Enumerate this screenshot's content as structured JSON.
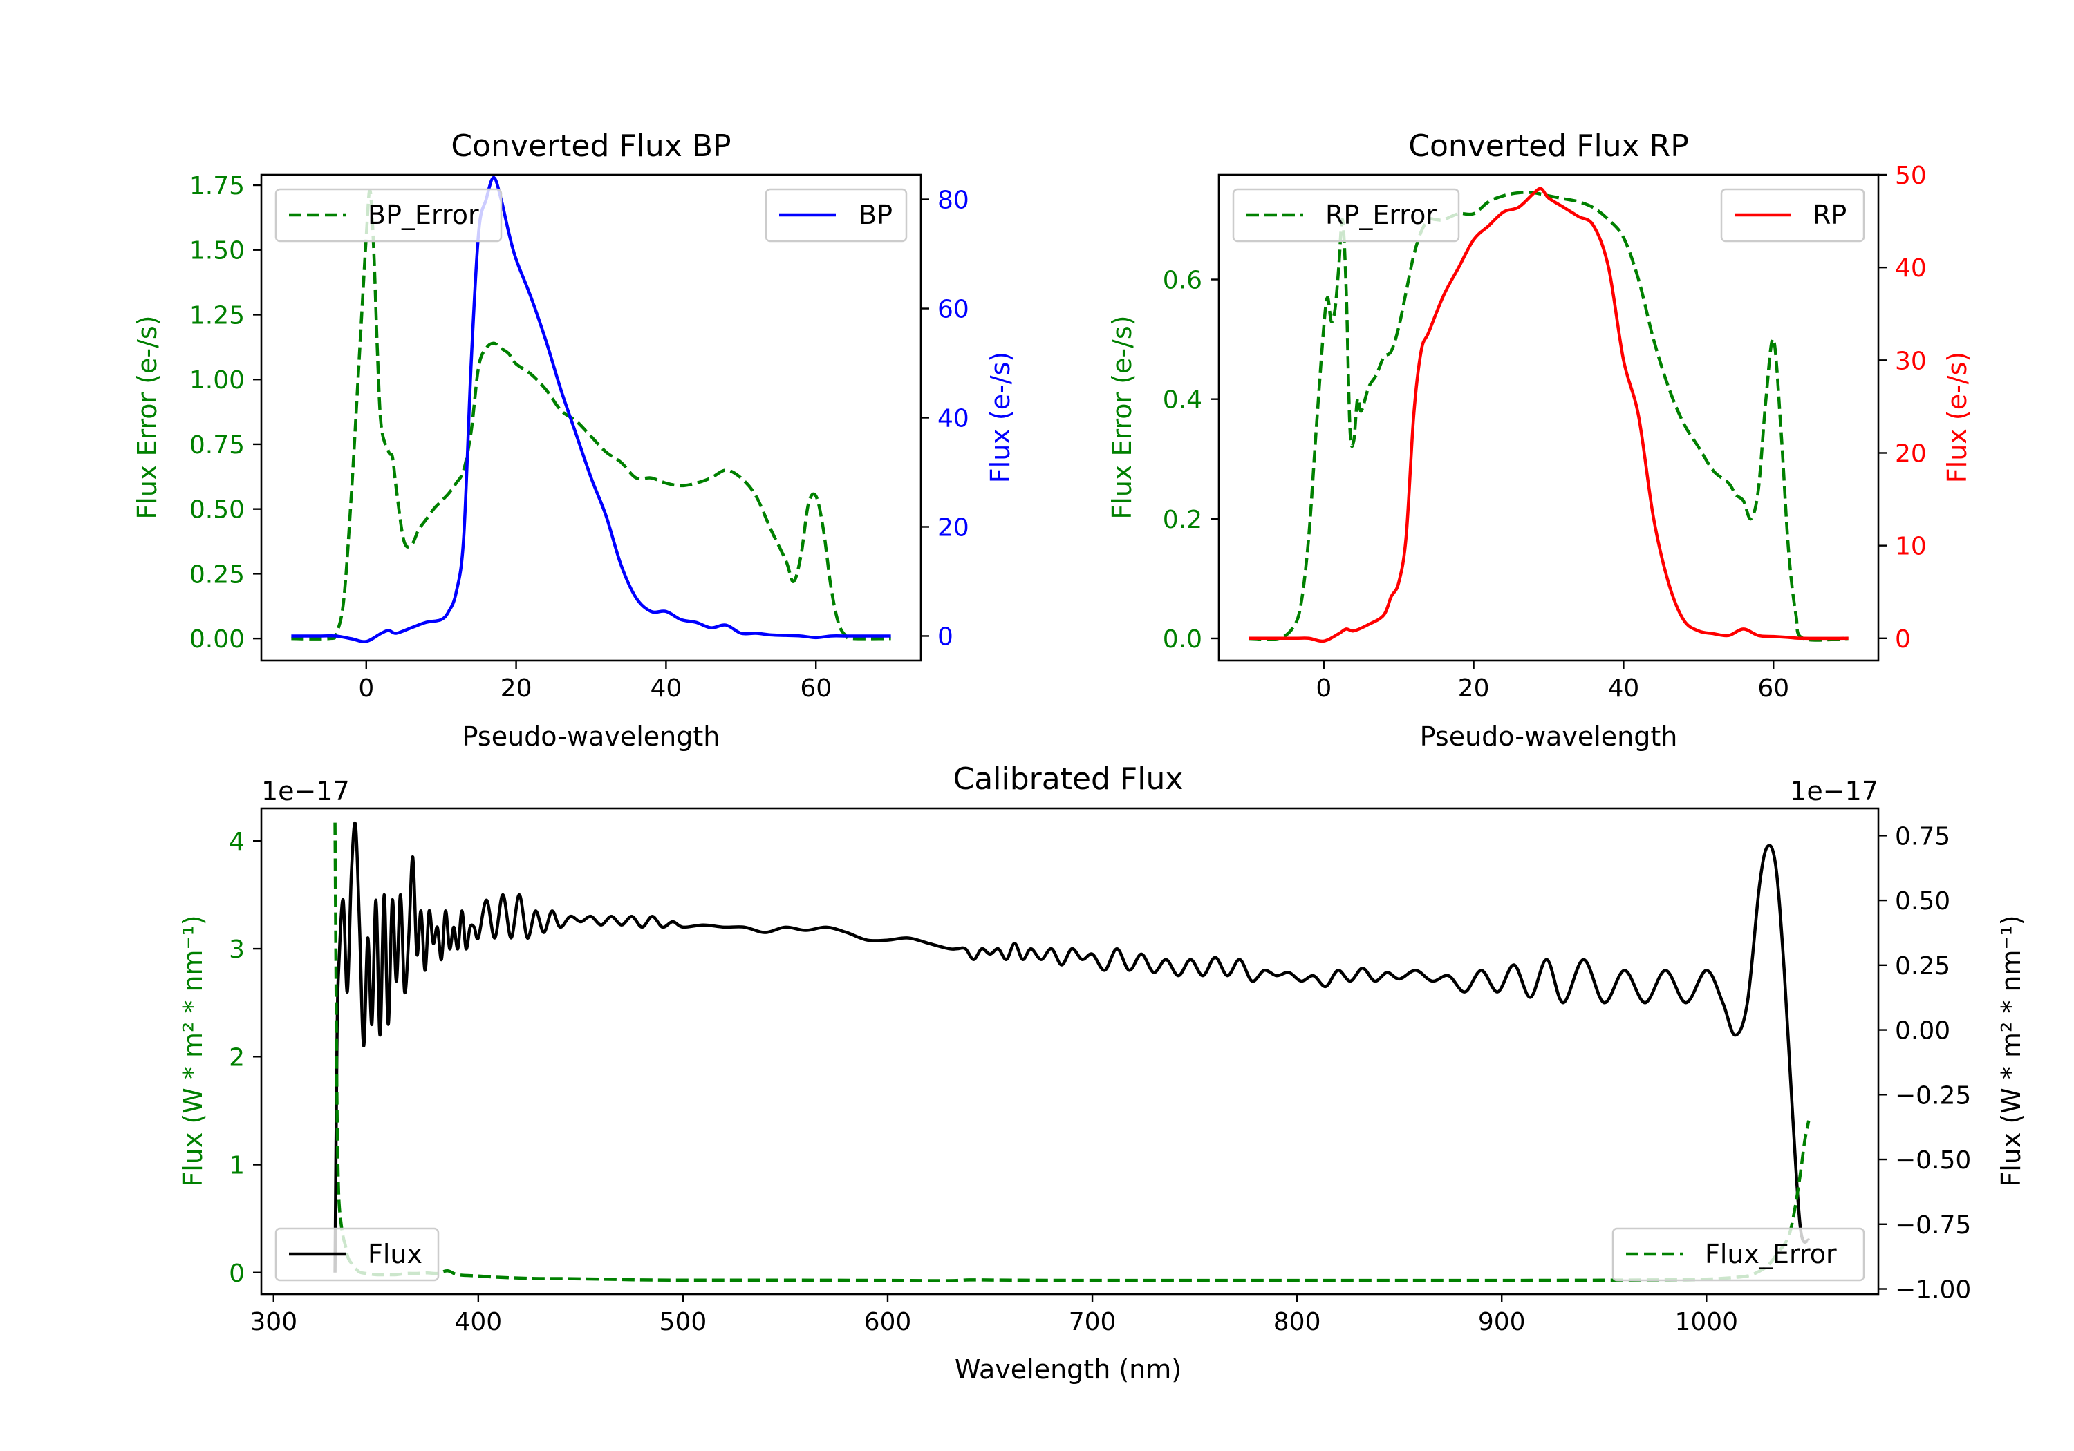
{
  "colors": {
    "bp": "#0000ff",
    "rp": "#ff0000",
    "error": "#008000",
    "flux": "#000000",
    "axis": "#000000"
  },
  "chart_data": [
    {
      "type": "line",
      "id": "bp",
      "title": "Converted Flux BP",
      "xlabel": "Pseudo-wavelength",
      "ylabel_left": "Flux Error (e-/s)",
      "ylabel_right": "Flux (e-/s)",
      "xlim": [
        -14,
        74
      ],
      "ylim_left": [
        -0.085,
        1.79
      ],
      "ylim_right": [
        -4.5,
        84.5
      ],
      "xticks": [
        0,
        20,
        40,
        60
      ],
      "yticks_left": [
        "0.00",
        "0.25",
        "0.50",
        "0.75",
        "1.00",
        "1.25",
        "1.50",
        "1.75"
      ],
      "yticks_right": [
        "0",
        "20",
        "40",
        "60",
        "80"
      ],
      "legend_left": "BP_Error",
      "legend_right": "BP",
      "series": [
        {
          "name": "BP_Error",
          "axis": "left",
          "style": "dashed",
          "color": "error",
          "x": [
            -10,
            -5,
            -4,
            -3,
            -2,
            -1,
            0,
            0.5,
            1,
            1.5,
            2,
            3,
            3.5,
            4,
            5,
            6,
            7,
            8,
            9,
            10,
            11,
            12,
            13,
            14,
            15,
            16,
            17,
            18,
            19,
            20,
            22,
            24,
            26,
            28,
            30,
            32,
            34,
            36,
            38,
            40,
            42,
            44,
            46,
            48,
            50,
            52,
            54,
            56,
            57,
            58,
            59,
            60,
            61,
            62,
            63,
            64,
            65,
            70
          ],
          "y": [
            0.0,
            0.0,
            0.02,
            0.15,
            0.55,
            1.05,
            1.55,
            1.73,
            1.5,
            1.1,
            0.82,
            0.72,
            0.7,
            0.58,
            0.38,
            0.36,
            0.42,
            0.46,
            0.5,
            0.53,
            0.56,
            0.6,
            0.65,
            0.8,
            1.05,
            1.12,
            1.14,
            1.12,
            1.1,
            1.06,
            1.02,
            0.96,
            0.88,
            0.84,
            0.78,
            0.72,
            0.68,
            0.62,
            0.62,
            0.6,
            0.59,
            0.6,
            0.62,
            0.65,
            0.62,
            0.55,
            0.42,
            0.3,
            0.22,
            0.32,
            0.52,
            0.55,
            0.42,
            0.2,
            0.06,
            0.01,
            0.0,
            0.0
          ]
        },
        {
          "name": "BP",
          "axis": "right",
          "style": "solid",
          "color": "bp",
          "x": [
            -10,
            -6,
            -4,
            -2,
            0,
            2,
            3,
            4,
            6,
            8,
            10,
            11,
            12,
            13,
            14,
            15,
            16,
            17,
            18,
            19,
            20,
            22,
            24,
            26,
            28,
            30,
            32,
            34,
            36,
            38,
            40,
            42,
            44,
            46,
            48,
            50,
            52,
            54,
            56,
            58,
            60,
            62,
            64,
            66,
            70
          ],
          "y": [
            0.0,
            0.0,
            0.0,
            -0.5,
            -1.0,
            0.5,
            1.0,
            0.5,
            1.5,
            2.5,
            3.0,
            4.5,
            8.0,
            18.0,
            50.0,
            74.0,
            80.0,
            84.0,
            80.0,
            74.0,
            69.0,
            62.0,
            54.0,
            45.0,
            37.0,
            29.0,
            22.0,
            13.0,
            7.0,
            4.5,
            4.5,
            3.0,
            2.5,
            1.5,
            2.0,
            0.5,
            0.5,
            0.2,
            0.1,
            0.0,
            -0.3,
            0.0,
            0.0,
            0.0,
            0.0
          ]
        }
      ]
    },
    {
      "type": "line",
      "id": "rp",
      "title": "Converted Flux RP",
      "xlabel": "Pseudo-wavelength",
      "ylabel_left": "Flux Error (e-/s)",
      "ylabel_right": "Flux (e-/s)",
      "xlim": [
        -14,
        74
      ],
      "ylim_left": [
        -0.037,
        0.775
      ],
      "ylim_right": [
        -2.4,
        50.0
      ],
      "xticks": [
        0,
        20,
        40,
        60
      ],
      "yticks_left": [
        "0.0",
        "0.2",
        "0.4",
        "0.6"
      ],
      "yticks_right": [
        "0",
        "10",
        "20",
        "30",
        "40",
        "50"
      ],
      "legend_left": "RP_Error",
      "legend_right": "RP",
      "series": [
        {
          "name": "RP_Error",
          "axis": "left",
          "style": "dashed",
          "color": "error",
          "x": [
            -10,
            -6,
            -4,
            -3,
            -2,
            -1,
            0,
            0.5,
            1,
            1.5,
            2,
            2.5,
            3,
            3.5,
            4,
            4.5,
            5,
            6,
            7,
            8,
            9,
            10,
            11,
            12,
            13,
            14,
            15,
            16,
            18,
            20,
            22,
            24,
            26,
            28,
            30,
            32,
            34,
            36,
            38,
            40,
            42,
            44,
            46,
            48,
            50,
            52,
            54,
            55,
            56,
            57,
            58,
            59,
            60,
            61,
            62,
            63,
            64,
            70
          ],
          "y": [
            0.0,
            0.0,
            0.02,
            0.06,
            0.17,
            0.35,
            0.52,
            0.57,
            0.53,
            0.55,
            0.62,
            0.7,
            0.58,
            0.35,
            0.33,
            0.4,
            0.38,
            0.42,
            0.44,
            0.47,
            0.48,
            0.52,
            0.58,
            0.64,
            0.68,
            0.7,
            0.7,
            0.7,
            0.71,
            0.71,
            0.73,
            0.74,
            0.745,
            0.745,
            0.74,
            0.735,
            0.73,
            0.72,
            0.7,
            0.67,
            0.6,
            0.5,
            0.42,
            0.36,
            0.32,
            0.28,
            0.26,
            0.24,
            0.23,
            0.2,
            0.25,
            0.4,
            0.5,
            0.35,
            0.15,
            0.04,
            0.0,
            0.0
          ]
        },
        {
          "name": "RP",
          "axis": "right",
          "style": "solid",
          "color": "rp",
          "x": [
            -10,
            -4,
            -2,
            0,
            2,
            3,
            4,
            6,
            8,
            9,
            10,
            11,
            12,
            13,
            14,
            16,
            18,
            20,
            22,
            24,
            26,
            28,
            29,
            30,
            32,
            34,
            36,
            38,
            40,
            42,
            44,
            46,
            48,
            50,
            52,
            54,
            56,
            58,
            60,
            62,
            64,
            70
          ],
          "y": [
            0.0,
            0.0,
            0.0,
            -0.3,
            0.5,
            1.0,
            0.8,
            1.5,
            2.5,
            4.5,
            6.0,
            11.0,
            24.0,
            31.0,
            33.0,
            37.0,
            40.0,
            43.0,
            44.5,
            46.0,
            46.5,
            48.0,
            48.5,
            47.5,
            46.5,
            45.5,
            44.5,
            40.0,
            30.0,
            24.0,
            13.0,
            6.0,
            2.0,
            0.8,
            0.5,
            0.3,
            1.0,
            0.3,
            0.2,
            0.1,
            0.0,
            0.0
          ]
        }
      ]
    },
    {
      "type": "line",
      "id": "calibrated",
      "title": "Calibrated Flux",
      "xlabel": "Wavelength (nm)",
      "ylabel_left": "Flux (W * m² * nm⁻¹)",
      "ylabel_right": "Flux (W * m² * nm⁻¹)",
      "offset_left": "1e−17",
      "offset_right": "1e−17",
      "xlim": [
        294,
        1084
      ],
      "ylim_left": [
        -0.2,
        4.3
      ],
      "ylim_right": [
        -1.02,
        0.855
      ],
      "xticks": [
        300,
        400,
        500,
        600,
        700,
        800,
        900,
        1000
      ],
      "yticks_left": [
        "0",
        "1",
        "2",
        "3",
        "4"
      ],
      "yticks_right": [
        "−1.00",
        "−0.75",
        "−0.50",
        "−0.25",
        "0.00",
        "0.25",
        "0.50",
        "0.75"
      ],
      "legend_left": "Flux",
      "legend_right": "Flux_Error",
      "series": [
        {
          "name": "Flux",
          "axis": "left",
          "style": "solid",
          "color": "flux",
          "x": [
            330,
            331,
            332,
            334,
            336,
            338,
            340,
            342,
            344,
            346,
            348,
            350,
            352,
            354,
            356,
            358,
            360,
            362,
            364,
            366,
            368,
            370,
            372,
            374,
            376,
            378,
            380,
            382,
            384,
            386,
            388,
            390,
            392,
            394,
            396,
            398,
            400,
            404,
            408,
            412,
            416,
            420,
            424,
            428,
            432,
            436,
            440,
            445,
            450,
            455,
            460,
            465,
            470,
            475,
            480,
            485,
            490,
            495,
            500,
            510,
            520,
            530,
            540,
            550,
            560,
            570,
            580,
            590,
            600,
            610,
            620,
            630,
            634,
            638,
            642,
            646,
            650,
            654,
            658,
            662,
            666,
            670,
            675,
            680,
            685,
            690,
            695,
            700,
            706,
            712,
            718,
            724,
            730,
            736,
            742,
            748,
            754,
            760,
            766,
            772,
            778,
            784,
            790,
            796,
            802,
            808,
            814,
            820,
            826,
            832,
            838,
            844,
            850,
            858,
            866,
            874,
            882,
            890,
            898,
            906,
            914,
            922,
            930,
            940,
            950,
            960,
            970,
            980,
            990,
            1000,
            1008,
            1014,
            1020,
            1026,
            1030,
            1034,
            1038,
            1042,
            1046,
            1050
          ],
          "y": [
            0.0,
            2.2,
            2.9,
            3.45,
            2.6,
            3.7,
            4.15,
            3.2,
            2.1,
            3.1,
            2.3,
            3.45,
            2.2,
            3.5,
            2.3,
            3.45,
            2.7,
            3.5,
            2.6,
            3.1,
            3.85,
            2.95,
            3.35,
            2.8,
            3.35,
            3.05,
            3.2,
            2.9,
            3.35,
            3.0,
            3.2,
            3.0,
            3.35,
            3.0,
            3.2,
            3.2,
            3.1,
            3.45,
            3.1,
            3.5,
            3.1,
            3.5,
            3.1,
            3.35,
            3.15,
            3.35,
            3.2,
            3.3,
            3.25,
            3.3,
            3.22,
            3.3,
            3.22,
            3.3,
            3.2,
            3.3,
            3.2,
            3.25,
            3.2,
            3.22,
            3.2,
            3.2,
            3.15,
            3.2,
            3.17,
            3.2,
            3.15,
            3.08,
            3.08,
            3.1,
            3.05,
            3.0,
            3.0,
            3.0,
            2.9,
            3.0,
            2.95,
            3.0,
            2.9,
            3.05,
            2.9,
            3.0,
            2.9,
            3.0,
            2.85,
            3.0,
            2.9,
            2.95,
            2.8,
            3.0,
            2.8,
            2.95,
            2.78,
            2.9,
            2.75,
            2.9,
            2.75,
            2.92,
            2.75,
            2.9,
            2.7,
            2.8,
            2.75,
            2.78,
            2.7,
            2.75,
            2.65,
            2.8,
            2.7,
            2.82,
            2.7,
            2.78,
            2.72,
            2.8,
            2.7,
            2.75,
            2.6,
            2.8,
            2.6,
            2.85,
            2.55,
            2.9,
            2.5,
            2.9,
            2.5,
            2.8,
            2.5,
            2.8,
            2.5,
            2.8,
            2.5,
            2.2,
            2.5,
            3.6,
            3.95,
            3.75,
            2.8,
            1.5,
            0.4,
            0.3
          ]
        },
        {
          "name": "Flux_Error",
          "axis": "right",
          "style": "dashed",
          "color": "error",
          "x": [
            330,
            330.5,
            331,
            331.5,
            332,
            333,
            334,
            335,
            336,
            337,
            338,
            340,
            342,
            345,
            350,
            355,
            360,
            365,
            370,
            375,
            380,
            385,
            390,
            400,
            410,
            420,
            430,
            440,
            460,
            480,
            500,
            550,
            600,
            630,
            640,
            660,
            700,
            750,
            800,
            850,
            900,
            950,
            990,
            1000,
            1010,
            1020,
            1025,
            1030,
            1035,
            1040,
            1043,
            1046,
            1048,
            1050
          ],
          "y": [
            0.8,
            0.2,
            -0.3,
            -0.55,
            -0.67,
            -0.75,
            -0.8,
            -0.83,
            -0.87,
            -0.89,
            -0.9,
            -0.92,
            -0.935,
            -0.94,
            -0.945,
            -0.945,
            -0.945,
            -0.94,
            -0.94,
            -0.938,
            -0.94,
            -0.93,
            -0.945,
            -0.95,
            -0.955,
            -0.958,
            -0.96,
            -0.96,
            -0.962,
            -0.965,
            -0.966,
            -0.966,
            -0.967,
            -0.968,
            -0.965,
            -0.966,
            -0.967,
            -0.967,
            -0.967,
            -0.967,
            -0.967,
            -0.966,
            -0.964,
            -0.962,
            -0.958,
            -0.95,
            -0.935,
            -0.91,
            -0.86,
            -0.8,
            -0.7,
            -0.55,
            -0.43,
            -0.35
          ]
        }
      ]
    }
  ]
}
